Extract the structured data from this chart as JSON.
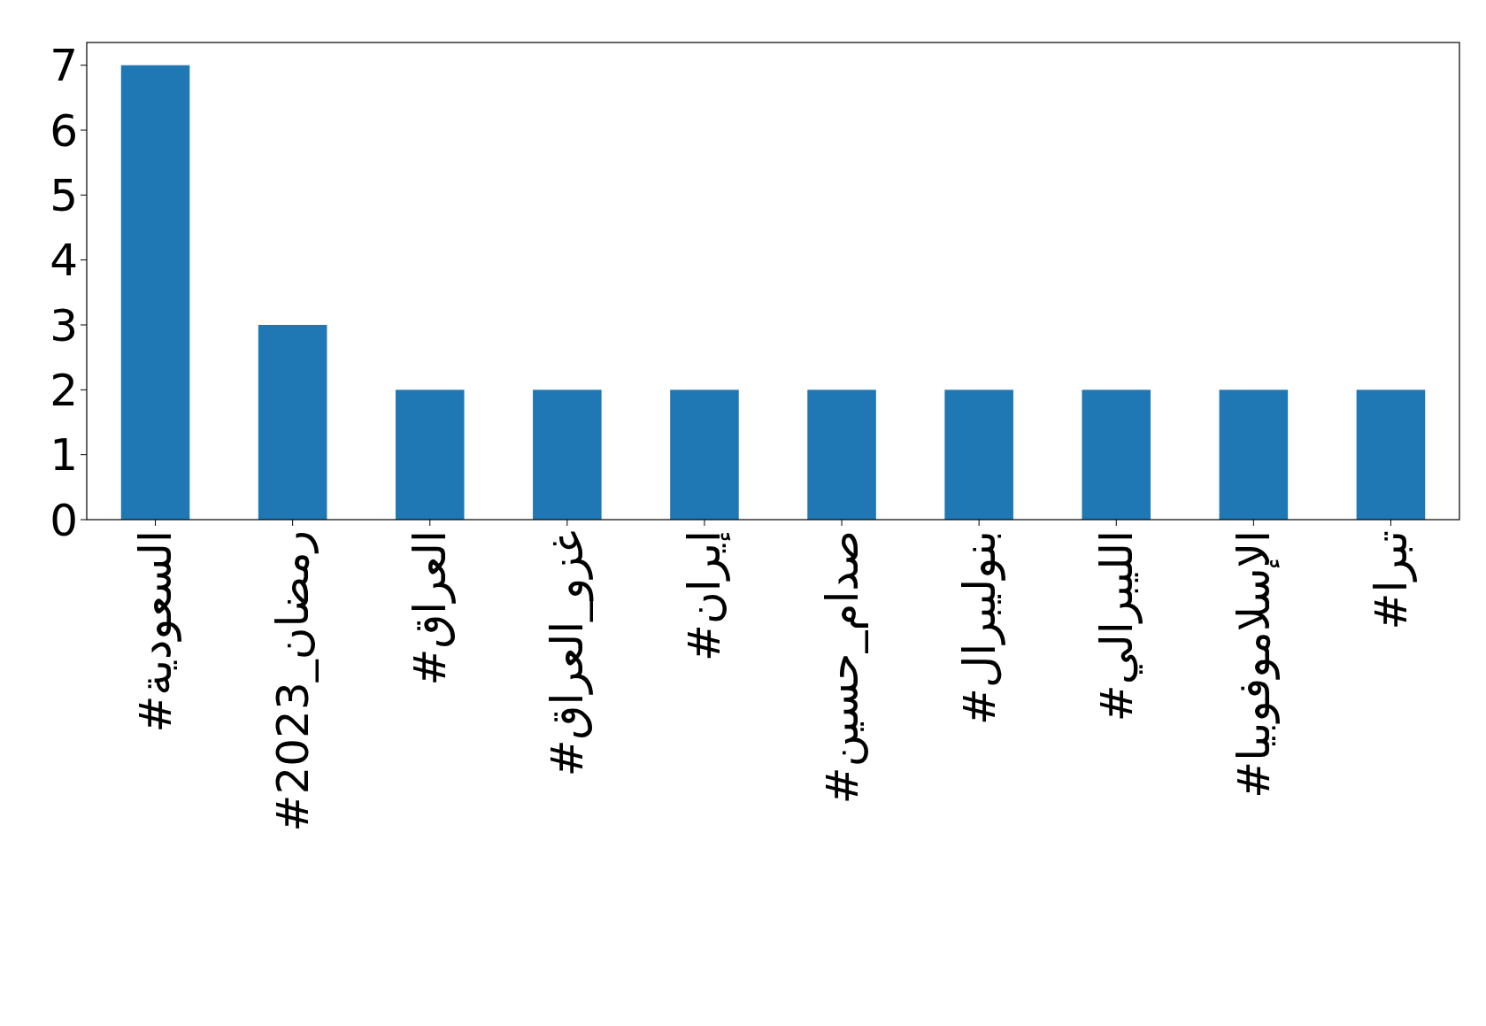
{
  "chart_data": {
    "type": "bar",
    "categories": [
      "#السعودية",
      "#رمضان_2023",
      "#العراق",
      "#غزو_العراق",
      "#إيران",
      "#صدام_حسين",
      "#بنوليبرال",
      "#الليبرالي",
      "#الإسلاموفوبيا",
      "#تبرا"
    ],
    "values": [
      7,
      3,
      2,
      2,
      2,
      2,
      2,
      2,
      2,
      2
    ],
    "color": "#1f77b4",
    "ylim": [
      0,
      7.35
    ],
    "yticks": [
      0,
      1,
      2,
      3,
      4,
      5,
      6,
      7
    ]
  }
}
